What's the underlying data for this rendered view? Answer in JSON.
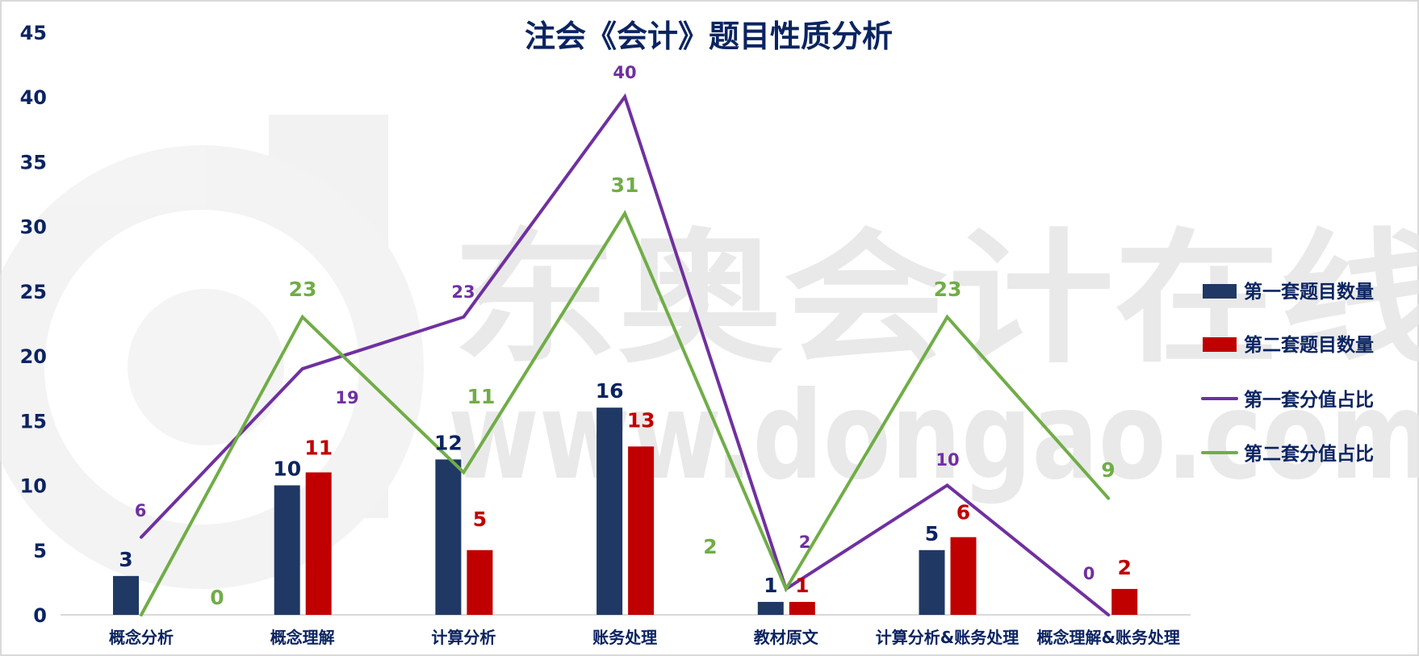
{
  "chart_data": {
    "type": "bar+line",
    "title": "注会《会计》题目性质分析",
    "categories": [
      "概念分析",
      "概念理解",
      "计算分析",
      "账务处理",
      "教材原文",
      "计算分析&账务处理",
      "概念理解&账务处理"
    ],
    "series": [
      {
        "name": "第一套题目数量",
        "type": "bar",
        "color": "#203864",
        "values": [
          3,
          10,
          12,
          16,
          1,
          5,
          0
        ]
      },
      {
        "name": "第二套题目数量",
        "type": "bar",
        "color": "#C00000",
        "values": [
          0,
          11,
          5,
          13,
          1,
          6,
          2
        ]
      },
      {
        "name": "第一套分值占比",
        "type": "line",
        "color": "#7030A0",
        "values": [
          6,
          19,
          23,
          40,
          2,
          10,
          0
        ]
      },
      {
        "name": "第二套分值占比",
        "type": "line",
        "color": "#70AD47",
        "values": [
          0,
          23,
          11,
          31,
          2,
          23,
          9
        ]
      }
    ],
    "yticks": [
      0,
      5,
      10,
      15,
      20,
      25,
      30,
      35,
      40,
      45
    ],
    "ylim": [
      0,
      45
    ],
    "xlabel": "",
    "ylabel": "",
    "grid": false,
    "legend_position": "right"
  },
  "bar_labels": {
    "set1": [
      "3",
      "10",
      "12",
      "16",
      "1",
      "5",
      ""
    ],
    "set2": [
      "",
      "11",
      "5",
      "13",
      "1",
      "6",
      "2"
    ]
  },
  "line_labels": {
    "set1": [
      "6",
      "19",
      "23",
      "40",
      "2",
      "10",
      "0"
    ],
    "set2": [
      "0",
      "23",
      "11",
      "31",
      "2",
      "23",
      "9"
    ]
  },
  "watermark": {
    "brand_cn": "东奥会计在线",
    "url": "www.dongao.com"
  }
}
